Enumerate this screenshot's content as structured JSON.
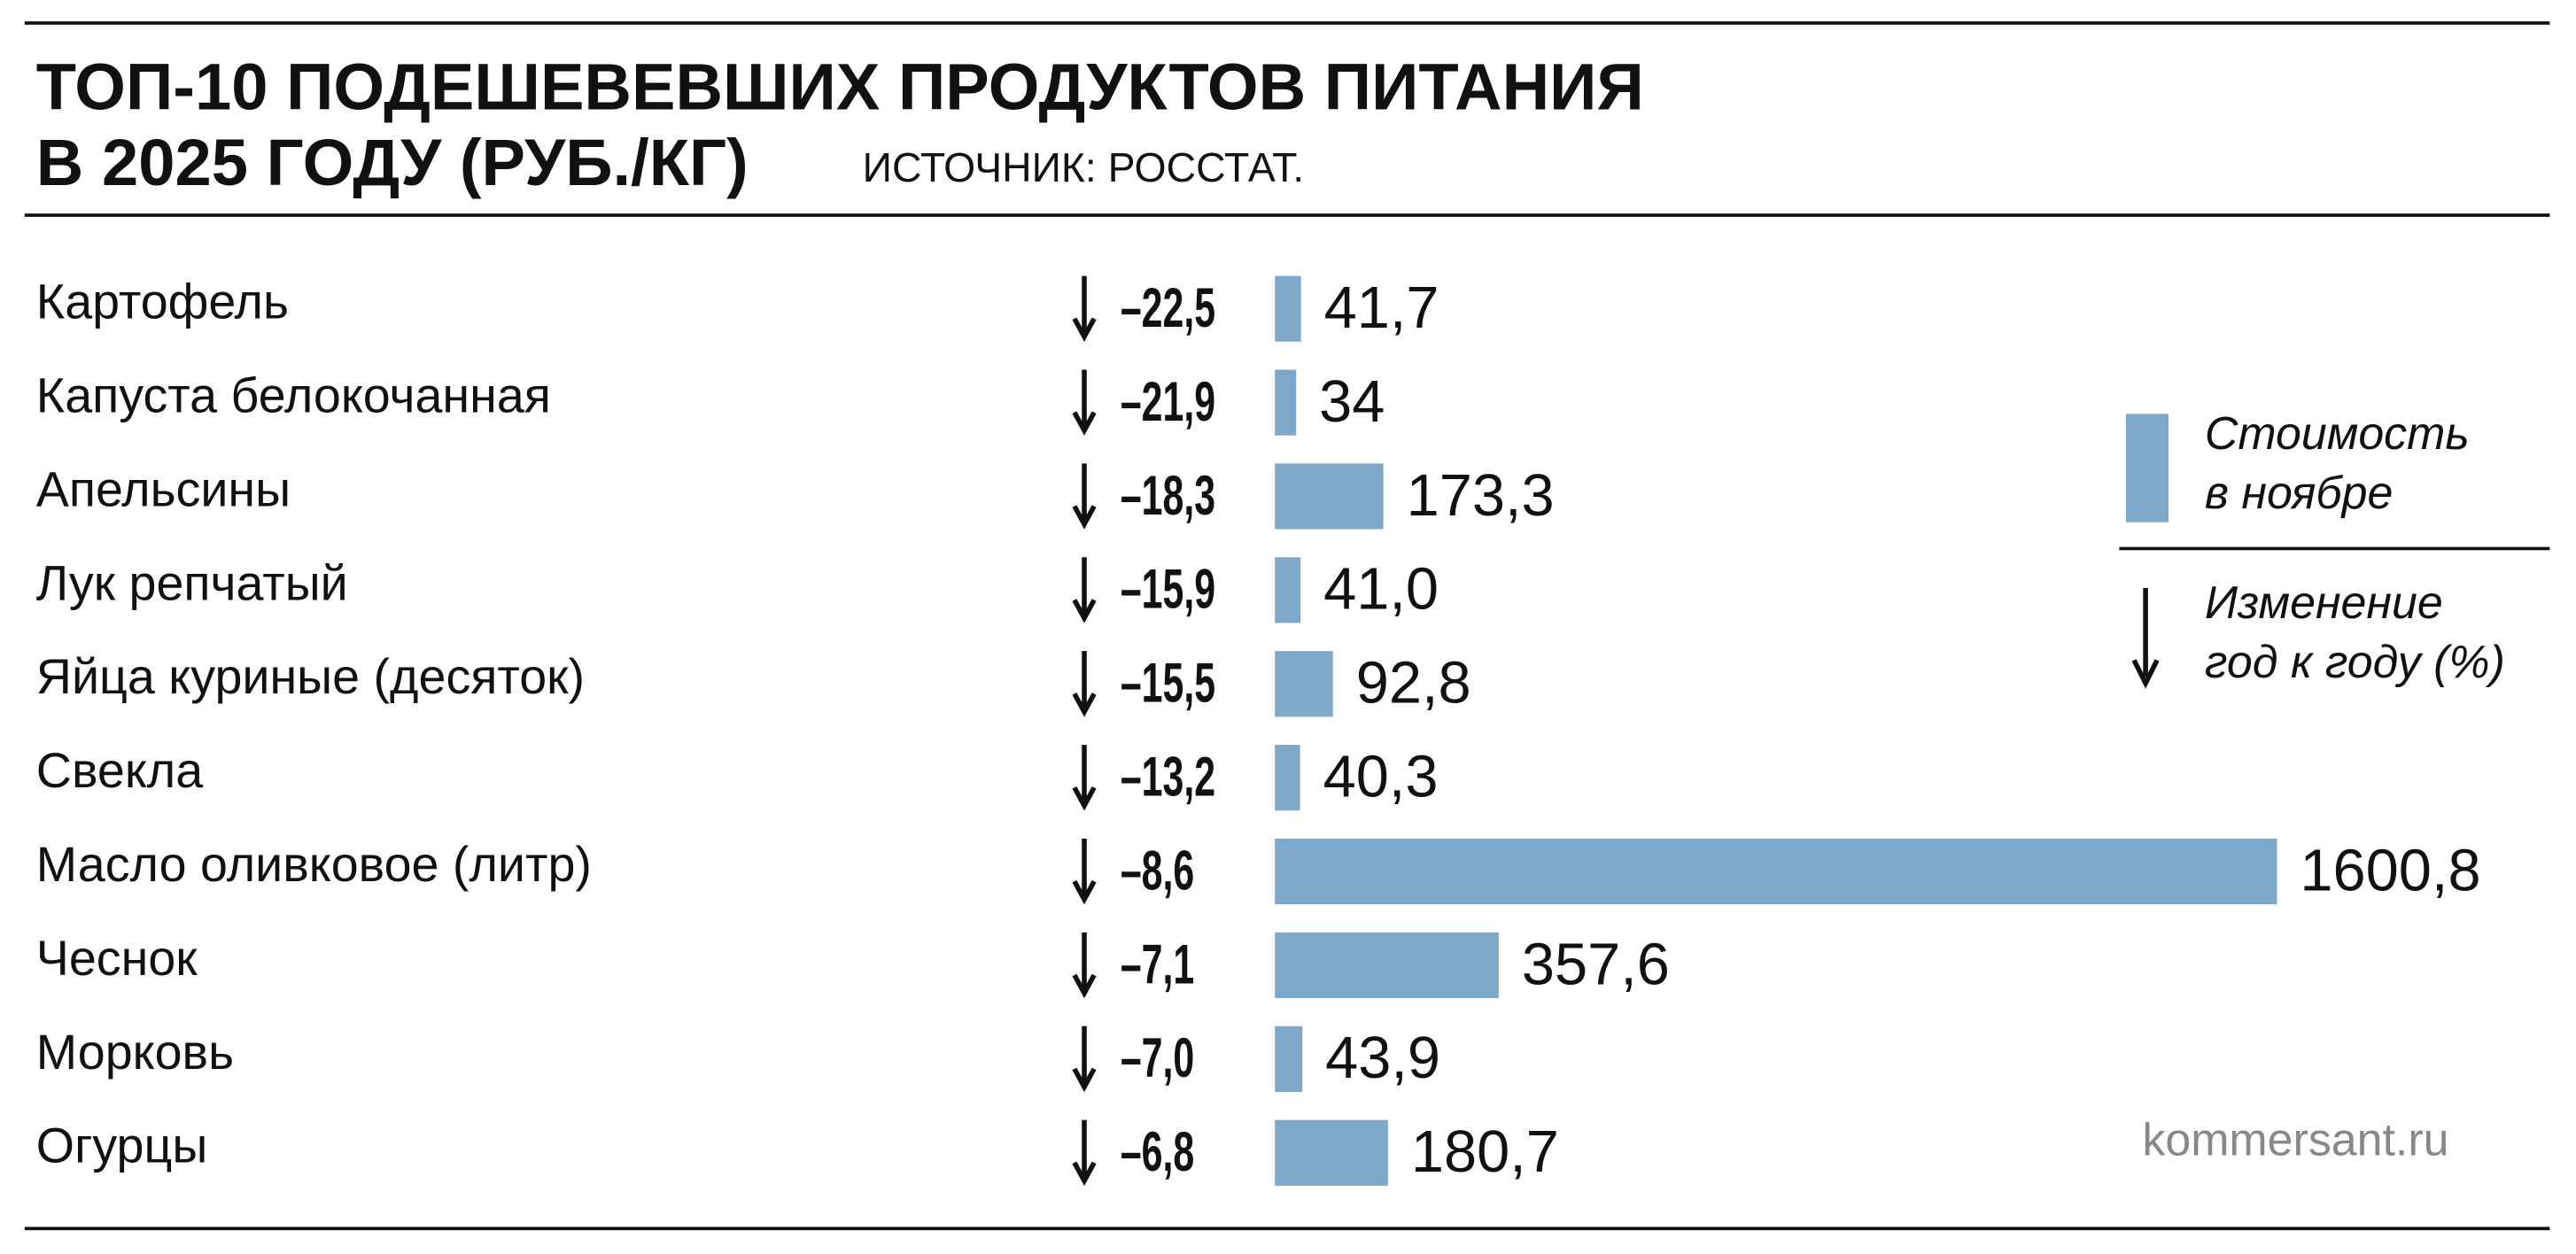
{
  "chart_data": {
    "type": "bar",
    "orientation": "horizontal",
    "title": [
      "ТОП-10 ПОДЕШЕВЕВШИХ ПРОДУКТОВ ПИТАНИЯ",
      "В 2025 ГОДУ (РУБ./КГ)"
    ],
    "source": "ИСТОЧНИК: РОССТАТ.",
    "credit": "kommersant.ru",
    "categories": [
      "Картофель",
      "Капуста белокочанная",
      "Апельсины",
      "Лук репчатый",
      "Яйца куриные (десяток)",
      "Свекла",
      "Масло оливковое (литр)",
      "Чеснок",
      "Морковь",
      "Огурцы"
    ],
    "series": [
      {
        "name": [
          "Стоимость",
          "в ноябре"
        ],
        "color": "#7ea8ca",
        "values": [
          41.7,
          34,
          173.3,
          41.0,
          92.8,
          40.3,
          1600.8,
          357.6,
          43.9,
          180.7
        ],
        "value_labels": [
          "41,7",
          "34",
          "173,3",
          "41,0",
          "92,8",
          "40,3",
          "1600,8",
          "357,6",
          "43,9",
          "180,7"
        ]
      },
      {
        "name": [
          "Изменение",
          "год к году (%)"
        ],
        "values": [
          -22.5,
          -21.9,
          -18.3,
          -15.9,
          -15.5,
          -13.2,
          -8.6,
          -7.1,
          -7.0,
          -6.8
        ],
        "value_labels": [
          "–22,5",
          "–21,9",
          "–18,3",
          "–15,9",
          "–15,5",
          "–13,2",
          "–8,6",
          "–7,1",
          "–7,0",
          "–6,8"
        ]
      }
    ]
  }
}
